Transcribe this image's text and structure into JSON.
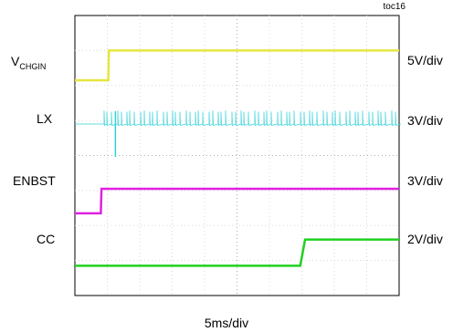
{
  "figure_id": "toc16",
  "x_label": "5ms/div",
  "channels": [
    {
      "name_main": "V",
      "name_sub": "CHGIN",
      "scale": "5V/div",
      "color": "#e6e640"
    },
    {
      "name_main": "LX",
      "name_sub": "",
      "scale": "3V/div",
      "color": "#30d0d8"
    },
    {
      "name_main": "ENBST",
      "name_sub": "",
      "scale": "3V/div",
      "color": "#e020e0"
    },
    {
      "name_main": "CC",
      "name_sub": "",
      "scale": "2V/div",
      "color": "#20d020"
    }
  ],
  "chart_data": {
    "type": "line",
    "grid": true,
    "x_divisions": 10,
    "y_divisions": 8,
    "x_unit": "div",
    "xlim": [
      0,
      10
    ],
    "ylim": [
      0,
      8
    ],
    "series": [
      {
        "name": "VCHGIN",
        "color": "#e6e640",
        "x": [
          0,
          1.03,
          1.05,
          10
        ],
        "y": [
          6.15,
          6.15,
          7.0,
          7.0
        ]
      },
      {
        "name": "LX",
        "color": "#30d0d8",
        "x": [
          0,
          10
        ],
        "y": [
          4.9,
          4.9
        ],
        "burst_start": 0.9,
        "burst_amplitude": 0.35
      },
      {
        "name": "ENBST",
        "color": "#e020e0",
        "x": [
          0,
          0.8,
          0.82,
          10
        ],
        "y": [
          2.35,
          2.35,
          3.05,
          3.05
        ]
      },
      {
        "name": "CC",
        "color": "#20d020",
        "x": [
          0,
          6.95,
          7.1,
          10
        ],
        "y": [
          0.85,
          0.85,
          1.6,
          1.6
        ]
      }
    ]
  }
}
